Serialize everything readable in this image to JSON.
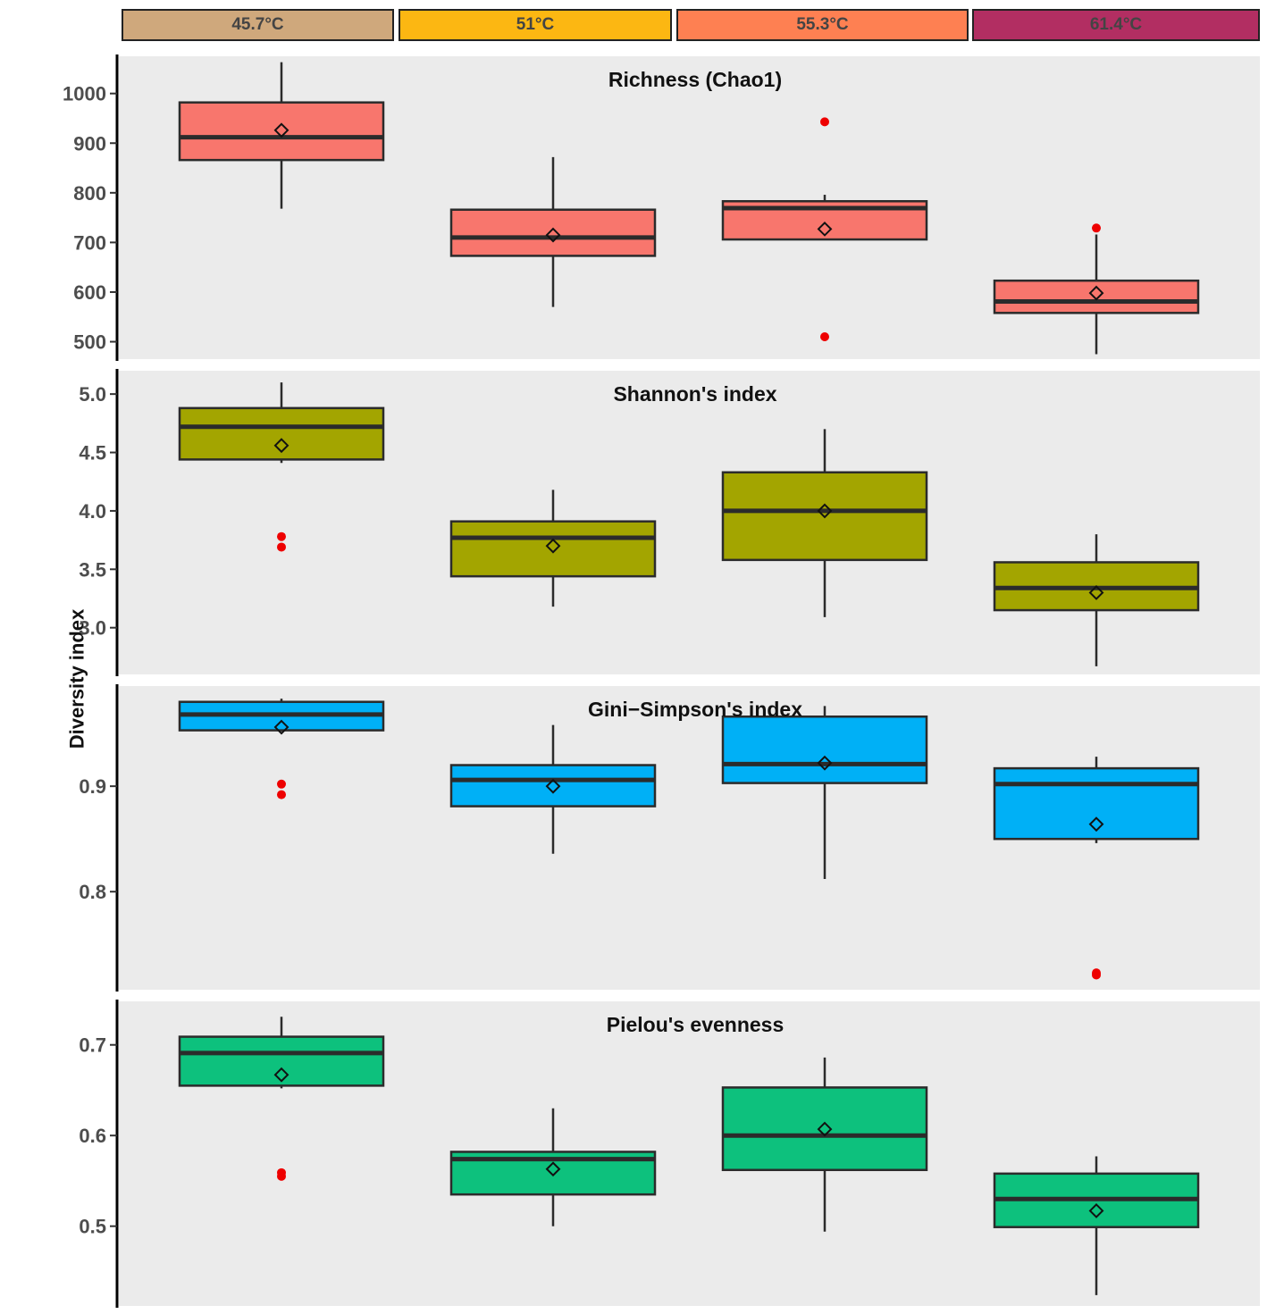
{
  "y_axis_label": "Diversity index",
  "strips": [
    {
      "label": "45.7°C",
      "color": "#CFA87C"
    },
    {
      "label": "51°C",
      "color": "#FCB712"
    },
    {
      "label": "55.3°C",
      "color": "#FE8052"
    },
    {
      "label": "61.4°C",
      "color": "#B22E62"
    }
  ],
  "chart_data": [
    {
      "type": "box",
      "title": "Richness (Chao1)",
      "fill": "#F8766D",
      "categories": [
        "45.7°C",
        "51°C",
        "55.3°C",
        "61.4°C"
      ],
      "ylim": [
        465,
        1075
      ],
      "yticks": [
        500,
        600,
        700,
        800,
        900,
        1000
      ],
      "ytick_labels": [
        "500",
        "600",
        "700",
        "800",
        "900",
        "1000"
      ],
      "boxes": [
        {
          "whisker_low": 768,
          "q1": 866,
          "median": 912,
          "q3": 982,
          "whisker_high": 1063,
          "mean": 926,
          "outliers": []
        },
        {
          "whisker_low": 570,
          "q1": 673,
          "median": 710,
          "q3": 766,
          "whisker_high": 872,
          "mean": 715,
          "outliers": []
        },
        {
          "whisker_low": 705,
          "q1": 706,
          "median": 769,
          "q3": 783,
          "whisker_high": 796,
          "mean": 727,
          "outliers": [
            510,
            943
          ]
        },
        {
          "whisker_low": 475,
          "q1": 558,
          "median": 581,
          "q3": 623,
          "whisker_high": 716,
          "mean": 598,
          "outliers": [
            729
          ]
        }
      ]
    },
    {
      "type": "box",
      "title": "Shannon's index",
      "fill": "#A3A500",
      "categories": [
        "45.7°C",
        "51°C",
        "55.3°C",
        "61.4°C"
      ],
      "ylim": [
        2.6,
        5.2
      ],
      "yticks": [
        3.0,
        3.5,
        4.0,
        4.5,
        5.0
      ],
      "ytick_labels": [
        "3.0",
        "3.5",
        "4.0",
        "4.5",
        "5.0"
      ],
      "boxes": [
        {
          "whisker_low": 4.41,
          "q1": 4.44,
          "median": 4.72,
          "q3": 4.88,
          "whisker_high": 5.1,
          "mean": 4.56,
          "outliers": [
            3.69,
            3.78
          ]
        },
        {
          "whisker_low": 3.18,
          "q1": 3.44,
          "median": 3.77,
          "q3": 3.91,
          "whisker_high": 4.18,
          "mean": 3.7,
          "outliers": []
        },
        {
          "whisker_low": 3.09,
          "q1": 3.58,
          "median": 4.0,
          "q3": 4.33,
          "whisker_high": 4.7,
          "mean": 4.0,
          "outliers": []
        },
        {
          "whisker_low": 2.67,
          "q1": 3.15,
          "median": 3.34,
          "q3": 3.56,
          "whisker_high": 3.8,
          "mean": 3.3,
          "outliers": []
        }
      ]
    },
    {
      "type": "box",
      "title": "Gini−Simpson's index",
      "fill": "#00B0F6",
      "categories": [
        "45.7°C",
        "51°C",
        "55.3°C",
        "61.4°C"
      ],
      "ylim": [
        0.707,
        0.995
      ],
      "yticks": [
        0.8,
        0.9
      ],
      "ytick_labels": [
        "0.8",
        "0.9"
      ],
      "boxes": [
        {
          "whisker_low": 0.952,
          "q1": 0.953,
          "median": 0.968,
          "q3": 0.98,
          "whisker_high": 0.983,
          "mean": 0.956,
          "outliers": [
            0.892,
            0.902
          ]
        },
        {
          "whisker_low": 0.836,
          "q1": 0.881,
          "median": 0.906,
          "q3": 0.92,
          "whisker_high": 0.958,
          "mean": 0.9,
          "outliers": []
        },
        {
          "whisker_low": 0.812,
          "q1": 0.903,
          "median": 0.921,
          "q3": 0.966,
          "whisker_high": 0.976,
          "mean": 0.922,
          "outliers": []
        },
        {
          "whisker_low": 0.846,
          "q1": 0.85,
          "median": 0.902,
          "q3": 0.917,
          "whisker_high": 0.928,
          "mean": 0.864,
          "outliers": [
            0.721,
            0.723
          ]
        }
      ]
    },
    {
      "type": "box",
      "title": "Pielou's evenness",
      "fill": "#0DC17D",
      "categories": [
        "45.7°C",
        "51°C",
        "55.3°C",
        "61.4°C"
      ],
      "ylim": [
        0.412,
        0.748
      ],
      "yticks": [
        0.5,
        0.6,
        0.7
      ],
      "ytick_labels": [
        "0.5",
        "0.6",
        "0.7"
      ],
      "boxes": [
        {
          "whisker_low": 0.652,
          "q1": 0.655,
          "median": 0.691,
          "q3": 0.709,
          "whisker_high": 0.731,
          "mean": 0.667,
          "outliers": [
            0.555,
            0.559
          ]
        },
        {
          "whisker_low": 0.5,
          "q1": 0.535,
          "median": 0.574,
          "q3": 0.582,
          "whisker_high": 0.63,
          "mean": 0.563,
          "outliers": []
        },
        {
          "whisker_low": 0.494,
          "q1": 0.562,
          "median": 0.6,
          "q3": 0.653,
          "whisker_high": 0.686,
          "mean": 0.607,
          "outliers": []
        },
        {
          "whisker_low": 0.424,
          "q1": 0.499,
          "median": 0.53,
          "q3": 0.558,
          "whisker_high": 0.577,
          "mean": 0.517,
          "outliers": []
        }
      ]
    }
  ]
}
